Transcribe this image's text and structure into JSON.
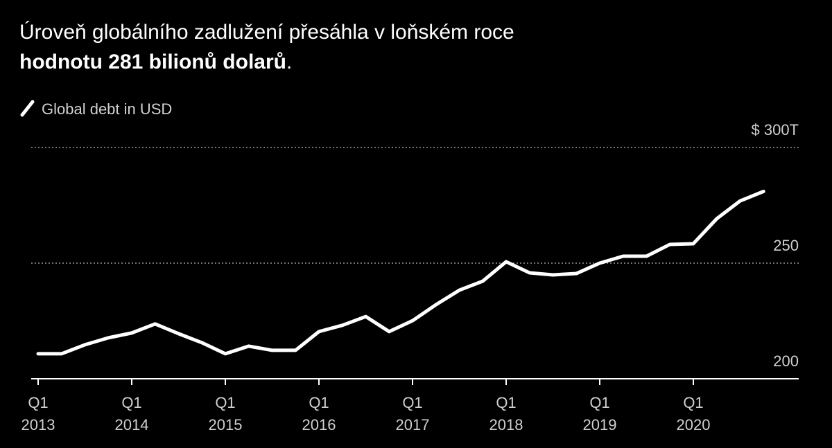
{
  "chart_data": {
    "type": "line",
    "title": {
      "text": "Úroveň globálního zadlužení přesáhla v loňském roce",
      "highlight": "hodnotu 281 bilionů dolarů",
      "end": "."
    },
    "categories": [
      "Q1 2013",
      null,
      null,
      null,
      "Q1 2014",
      null,
      null,
      null,
      "Q1 2015",
      null,
      null,
      null,
      "Q1 2016",
      null,
      null,
      null,
      "Q1 2017",
      null,
      null,
      null,
      "Q1 2018",
      null,
      null,
      null,
      "Q1 2019",
      null,
      null,
      null,
      "Q1 2020",
      null,
      null,
      null
    ],
    "series": [
      {
        "name": "Global debt in USD",
        "color": "#ffffff",
        "values": [
          210.8,
          210.8,
          214.7,
          217.7,
          219.8,
          223.7,
          219.5,
          215.6,
          210.8,
          214.1,
          212.3,
          212.3,
          220.4,
          223.1,
          226.9,
          220.4,
          225.1,
          232.0,
          238.3,
          242.2,
          250.6,
          245.8,
          244.9,
          245.5,
          250.0,
          253.0,
          253.0,
          258.1,
          258.4,
          269.2,
          276.9,
          281
        ]
      }
    ],
    "ylim": [
      200,
      300
    ],
    "yticks": [
      200,
      250,
      {
        "value": 300,
        "label": "$ 300T"
      }
    ],
    "grid": true
  }
}
